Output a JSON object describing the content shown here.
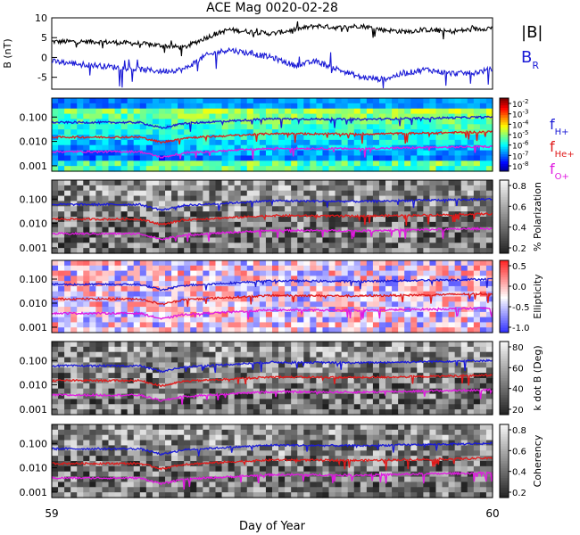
{
  "title": "ACE Mag 0020-02-28",
  "xlabel": "Day of Year",
  "x_ticks": [
    "59",
    "60"
  ],
  "legend_top": [
    {
      "label": "|B|",
      "color": "#000000"
    },
    {
      "label": "B",
      "sub": "R",
      "color": "#1a1ad6"
    }
  ],
  "legend_freq": [
    {
      "label": "f",
      "sub": "H+",
      "color": "#1a1ad6"
    },
    {
      "label": "f",
      "sub": "He+",
      "color": "#e01a1a"
    },
    {
      "label": "f",
      "sub": "O+",
      "color": "#e01ae0"
    }
  ],
  "colors": {
    "black": "#000000",
    "blue": "#1a1ad6",
    "red": "#e01a1a",
    "magenta": "#e01ae0"
  },
  "chart_data": [
    {
      "panel": "field",
      "type": "line",
      "ylabel": "B (nT)",
      "ylim": [
        -8,
        10
      ],
      "y_ticks": [
        "10",
        "5",
        "0",
        "-5"
      ],
      "xlim": [
        59,
        60
      ],
      "series": [
        {
          "name": "|B|",
          "x": [
            59.0,
            59.1,
            59.2,
            59.25,
            59.3,
            59.35,
            59.4,
            59.45,
            59.5,
            59.55,
            59.6,
            59.65,
            59.7,
            59.75,
            59.8,
            59.85,
            59.9,
            59.95,
            60.0
          ],
          "y": [
            4,
            4,
            3.5,
            3,
            2.5,
            5,
            7,
            6.5,
            6,
            7,
            8,
            7.5,
            8,
            7,
            6.5,
            7,
            6.5,
            7,
            7.5
          ]
        },
        {
          "name": "B_R",
          "x": [
            59.0,
            59.1,
            59.2,
            59.25,
            59.3,
            59.35,
            59.4,
            59.45,
            59.5,
            59.55,
            59.6,
            59.65,
            59.7,
            59.75,
            59.8,
            59.85,
            59.9,
            59.95,
            60.0
          ],
          "y": [
            -1,
            -2,
            -3,
            -3.5,
            -3,
            0.5,
            2,
            1,
            0,
            -2,
            -1,
            -3,
            -5,
            -5.5,
            -4,
            -3,
            -4,
            -4,
            -3
          ]
        }
      ]
    },
    {
      "panel": "power",
      "type": "heatmap",
      "ylim_log": [
        0.0006,
        0.6
      ],
      "y_ticks": [
        "0.100",
        "0.010",
        "0.001"
      ],
      "colorbar_ticks": [
        "10^-2",
        "10^-3",
        "10^-4",
        "10^-5",
        "10^-6",
        "10^-7",
        "10^-8"
      ],
      "series": [
        {
          "name": "f_H+",
          "x": [
            59.0,
            59.2,
            59.25,
            59.3,
            59.5,
            59.7,
            59.85,
            60.0
          ],
          "y": [
            0.06,
            0.06,
            0.035,
            0.055,
            0.085,
            0.08,
            0.09,
            0.1
          ]
        },
        {
          "name": "f_He+",
          "x": [
            59.0,
            59.2,
            59.25,
            59.3,
            59.5,
            59.7,
            59.85,
            60.0
          ],
          "y": [
            0.015,
            0.015,
            0.009,
            0.014,
            0.021,
            0.02,
            0.022,
            0.025
          ]
        },
        {
          "name": "f_O+",
          "x": [
            59.0,
            59.2,
            59.25,
            59.3,
            59.5,
            59.7,
            59.85,
            60.0
          ],
          "y": [
            0.0038,
            0.0038,
            0.0022,
            0.0034,
            0.0052,
            0.005,
            0.0056,
            0.0062
          ]
        }
      ]
    },
    {
      "panel": "polarization",
      "type": "heatmap",
      "colorbar_label": "% Polarization",
      "colorbar_ticks": [
        "0.8",
        "0.6",
        "0.4",
        "0.2"
      ],
      "y_ticks": [
        "0.100",
        "0.010",
        "0.001"
      ]
    },
    {
      "panel": "ellipticity",
      "type": "heatmap",
      "colorbar_label": "Ellipticity",
      "colorbar_ticks": [
        "0.5",
        "0.0",
        "-0.5",
        "-1.0"
      ],
      "y_ticks": [
        "0.100",
        "0.010",
        "0.001"
      ]
    },
    {
      "panel": "kdotb",
      "type": "heatmap",
      "colorbar_label": "k dot B (Deg)",
      "colorbar_ticks": [
        "80",
        "60",
        "40",
        "20"
      ],
      "y_ticks": [
        "0.100",
        "0.010",
        "0.001"
      ]
    },
    {
      "panel": "coherency",
      "type": "heatmap",
      "colorbar_label": "Coherency",
      "colorbar_ticks": [
        "0.8",
        "0.6",
        "0.4",
        "0.2"
      ],
      "y_ticks": [
        "0.100",
        "0.010",
        "0.001"
      ]
    }
  ]
}
